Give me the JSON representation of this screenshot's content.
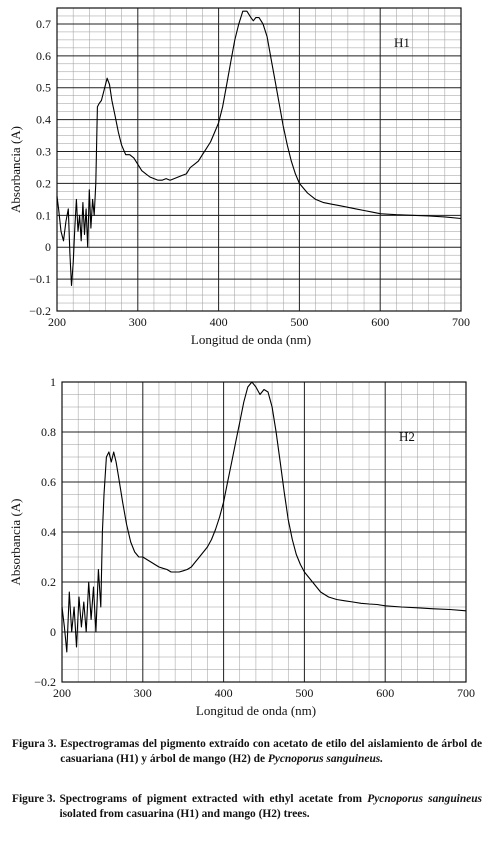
{
  "chart_data": [
    {
      "type": "line",
      "panel_label": "H1",
      "xlabel": "Longitud de onda (nm)",
      "ylabel": "Absorbancia (A)",
      "xlim": [
        200,
        700
      ],
      "ylim": [
        -0.2,
        0.75
      ],
      "x_ticks": [
        "200",
        "300",
        "400",
        "500",
        "600",
        "700"
      ],
      "y_ticks": [
        "−0.2",
        "−0.1",
        "0",
        "0.1",
        "0.2",
        "0.3",
        "0.4",
        "0.5",
        "0.6",
        "0.7"
      ],
      "y_tick_values": [
        -0.2,
        -0.1,
        0,
        0.1,
        0.2,
        0.3,
        0.4,
        0.5,
        0.6,
        0.7
      ],
      "grid": true,
      "series": [
        {
          "x": [
            200,
            202,
            205,
            208,
            211,
            214,
            216,
            218,
            220,
            222,
            224,
            226,
            228,
            230,
            232,
            234,
            236,
            238,
            240,
            242,
            244,
            246,
            248,
            250,
            252,
            255,
            258,
            262,
            265,
            268,
            272,
            276,
            280,
            285,
            290,
            295,
            300,
            305,
            310,
            315,
            320,
            325,
            330,
            335,
            340,
            345,
            350,
            355,
            360,
            365,
            370,
            375,
            380,
            385,
            390,
            395,
            400,
            405,
            410,
            415,
            420,
            425,
            430,
            435,
            440,
            443,
            446,
            450,
            455,
            460,
            465,
            470,
            475,
            480,
            485,
            490,
            495,
            500,
            510,
            520,
            530,
            540,
            550,
            560,
            570,
            580,
            590,
            600,
            620,
            640,
            660,
            680,
            700
          ],
          "y": [
            0.16,
            0.12,
            0.05,
            0.02,
            0.08,
            0.12,
            -0.02,
            -0.12,
            -0.05,
            0.06,
            0.15,
            0.05,
            0.1,
            0.02,
            0.14,
            0.04,
            0.12,
            0.0,
            0.18,
            0.06,
            0.15,
            0.1,
            0.2,
            0.44,
            0.45,
            0.46,
            0.49,
            0.53,
            0.51,
            0.46,
            0.41,
            0.36,
            0.32,
            0.29,
            0.29,
            0.28,
            0.26,
            0.24,
            0.23,
            0.22,
            0.215,
            0.21,
            0.21,
            0.215,
            0.21,
            0.215,
            0.22,
            0.225,
            0.23,
            0.25,
            0.26,
            0.27,
            0.29,
            0.31,
            0.33,
            0.36,
            0.39,
            0.44,
            0.51,
            0.58,
            0.65,
            0.7,
            0.74,
            0.74,
            0.72,
            0.71,
            0.72,
            0.72,
            0.7,
            0.66,
            0.59,
            0.52,
            0.45,
            0.38,
            0.32,
            0.27,
            0.23,
            0.2,
            0.17,
            0.15,
            0.14,
            0.135,
            0.13,
            0.125,
            0.12,
            0.115,
            0.11,
            0.105,
            0.102,
            0.1,
            0.098,
            0.095,
            0.09
          ]
        }
      ]
    },
    {
      "type": "line",
      "panel_label": "H2",
      "xlabel": "Longitud de onda (nm)",
      "ylabel": "Absorbancia (A)",
      "xlim": [
        200,
        700
      ],
      "ylim": [
        -0.2,
        1.0
      ],
      "x_ticks": [
        "200",
        "300",
        "400",
        "500",
        "600",
        "700"
      ],
      "y_ticks": [
        "−0.2",
        "0",
        "0.2",
        "0.4",
        "0.6",
        "0.8",
        "1"
      ],
      "y_tick_values": [
        -0.2,
        0,
        0.2,
        0.4,
        0.6,
        0.8,
        1.0
      ],
      "grid": true,
      "series": [
        {
          "x": [
            200,
            203,
            206,
            209,
            212,
            215,
            218,
            221,
            224,
            227,
            230,
            233,
            236,
            239,
            242,
            245,
            248,
            250,
            252,
            255,
            258,
            261,
            264,
            267,
            270,
            275,
            280,
            285,
            290,
            295,
            300,
            305,
            310,
            315,
            320,
            325,
            330,
            335,
            340,
            345,
            350,
            355,
            360,
            365,
            370,
            375,
            380,
            385,
            390,
            395,
            400,
            405,
            410,
            415,
            420,
            425,
            430,
            435,
            440,
            445,
            450,
            455,
            460,
            465,
            470,
            475,
            480,
            485,
            490,
            495,
            500,
            510,
            520,
            530,
            540,
            550,
            560,
            570,
            580,
            590,
            600,
            620,
            640,
            660,
            680,
            700
          ],
          "y": [
            0.1,
            0.02,
            -0.08,
            0.16,
            0.0,
            0.1,
            -0.06,
            0.14,
            0.02,
            0.12,
            0.0,
            0.2,
            0.05,
            0.18,
            0.0,
            0.25,
            0.1,
            0.4,
            0.55,
            0.7,
            0.72,
            0.68,
            0.72,
            0.68,
            0.62,
            0.52,
            0.43,
            0.36,
            0.32,
            0.3,
            0.3,
            0.29,
            0.28,
            0.27,
            0.26,
            0.255,
            0.25,
            0.24,
            0.24,
            0.24,
            0.245,
            0.25,
            0.26,
            0.28,
            0.3,
            0.32,
            0.34,
            0.37,
            0.41,
            0.46,
            0.52,
            0.6,
            0.68,
            0.76,
            0.84,
            0.92,
            0.98,
            1.0,
            0.98,
            0.95,
            0.97,
            0.96,
            0.9,
            0.8,
            0.68,
            0.56,
            0.45,
            0.37,
            0.31,
            0.27,
            0.24,
            0.2,
            0.16,
            0.14,
            0.13,
            0.125,
            0.12,
            0.115,
            0.112,
            0.11,
            0.105,
            0.1,
            0.097,
            0.093,
            0.09,
            0.085
          ]
        }
      ]
    }
  ],
  "captions": {
    "es_lead": "Figura 3.",
    "es_text_1": "Espectrogramas del pigmento extraído con acetato de etilo del aislamiento de árbol de casuariana (H1) y árbol de mango (H2) de ",
    "es_species": "Pycnoporus sanguineus.",
    "en_lead": "Figure 3.",
    "en_text_1": "Spectrograms of pigment extracted with ethyl acetate from ",
    "en_species": "Pycnoporus sanguineus",
    "en_text_2": " isolated from casuarina (H1) and mango (H2) trees."
  }
}
